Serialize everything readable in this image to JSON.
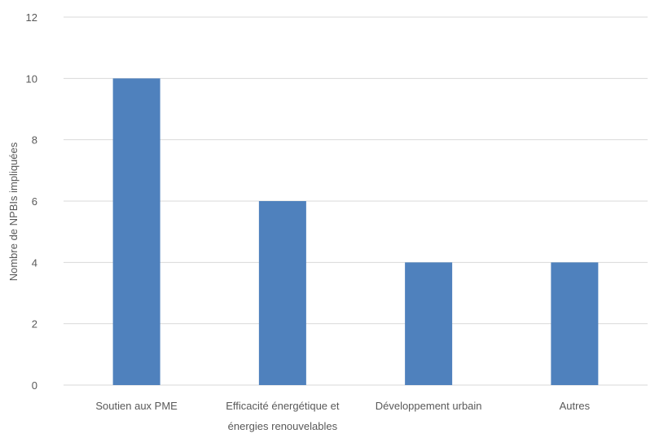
{
  "chart_data": {
    "type": "bar",
    "categories": [
      [
        "Soutien aux PME"
      ],
      [
        "Efficacité énergétique et",
        "énergies renouvelables"
      ],
      [
        "Développement urbain"
      ],
      [
        "Autres"
      ]
    ],
    "values": [
      10,
      6,
      4,
      4
    ],
    "ylabel": "Nombre de NPBIs impliquées",
    "xlabel": "",
    "title": "",
    "ylim": [
      0,
      12
    ],
    "yticks": [
      0,
      2,
      4,
      6,
      8,
      10,
      12
    ],
    "grid": true,
    "bar_color": "#4f81bd",
    "grid_color": "#d9d9d9"
  }
}
